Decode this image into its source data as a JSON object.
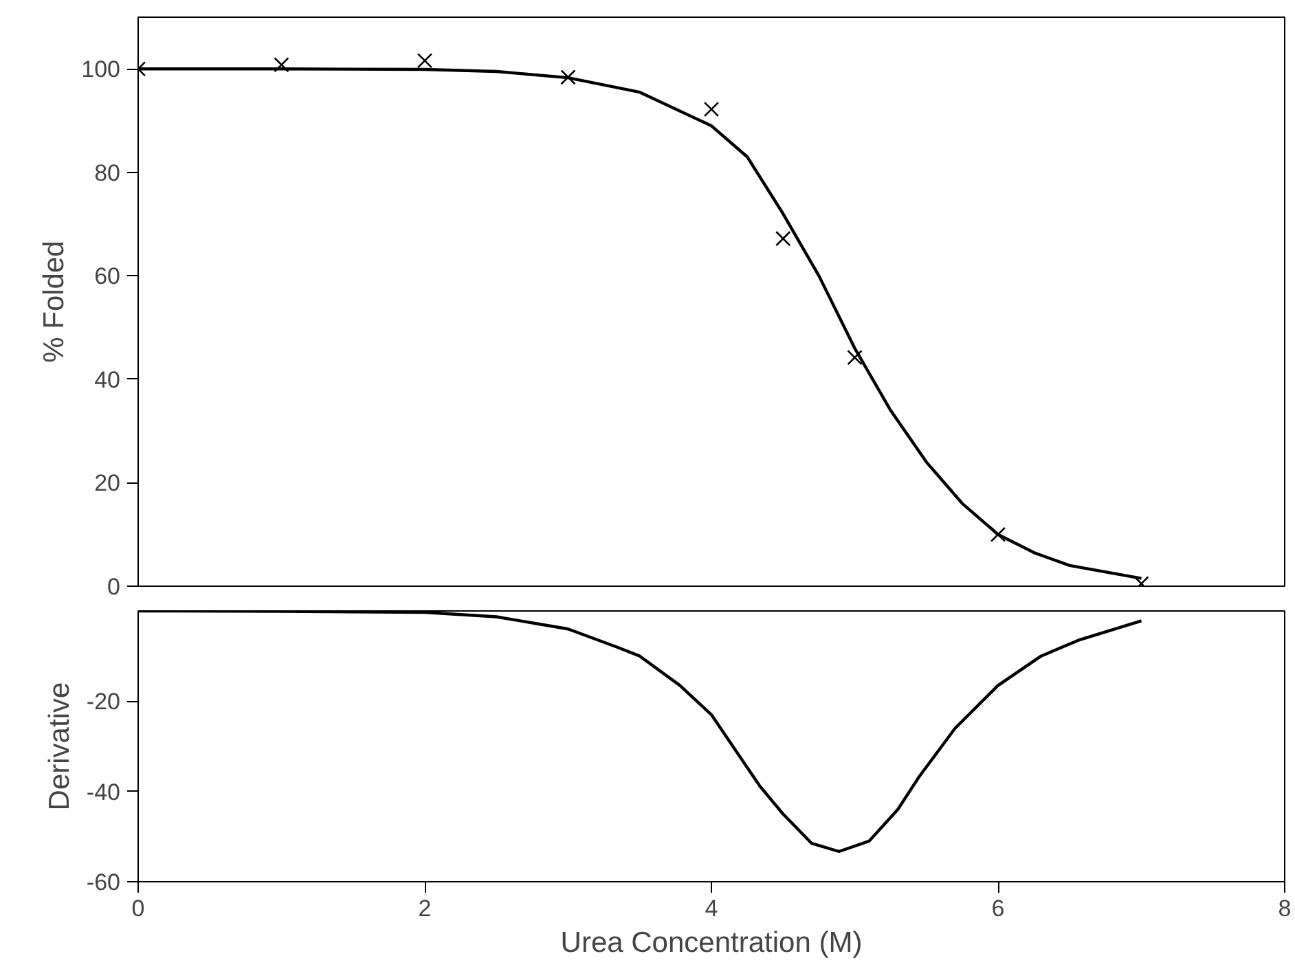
{
  "chart_data": [
    {
      "type": "scatter",
      "ylabel": "% Folded",
      "xlim": [
        0,
        8
      ],
      "ylim": [
        0,
        110
      ],
      "yticks": [
        0,
        20,
        40,
        60,
        80,
        100
      ],
      "tick_labels": "y",
      "grid": false,
      "series": [
        {
          "type": "scatter",
          "marker": "cross",
          "color": "#000000",
          "x": [
            0,
            1,
            2,
            3,
            4,
            4.5,
            5,
            6,
            7
          ],
          "values": [
            100,
            100.8,
            101.6,
            98.4,
            92.2,
            67.2,
            44.2,
            10.0,
            0.5
          ]
        },
        {
          "type": "line",
          "line_style": "solid",
          "color": "#000000",
          "x": [
            0,
            1,
            2,
            2.5,
            3,
            3.5,
            4,
            4.25,
            4.5,
            4.75,
            5,
            5.25,
            5.5,
            5.75,
            6,
            6.25,
            6.5,
            7
          ],
          "values": [
            100,
            100,
            99.9,
            99.5,
            98.3,
            95.5,
            89,
            83,
            72,
            60,
            46,
            34,
            24,
            16,
            10,
            6.5,
            4,
            1.5
          ]
        }
      ]
    },
    {
      "type": "line",
      "xlabel": "Urea Concentration (M)",
      "ylabel": "Derivative",
      "xlim": [
        0,
        8
      ],
      "xticks": [
        0,
        2,
        4,
        6,
        8
      ],
      "ylim": [
        -60,
        0
      ],
      "yticks": [
        -60,
        -40,
        -20
      ],
      "grid": false,
      "series": [
        {
          "line_style": "solid",
          "color": "#000000",
          "x": [
            0,
            1,
            2,
            2.5,
            3,
            3.34,
            3.5,
            3.78,
            4,
            4.34,
            4.5,
            4.7,
            4.89,
            5.1,
            5.3,
            5.45,
            5.7,
            6,
            6.3,
            6.56,
            7
          ],
          "values": [
            0,
            -0.1,
            -0.3,
            -1.3,
            -4,
            -8,
            -10,
            -16.5,
            -23,
            -38.9,
            -45,
            -51.5,
            -53.3,
            -51,
            -44,
            -36.7,
            -26,
            -16.5,
            -10,
            -6.5,
            -2.2
          ]
        }
      ]
    }
  ]
}
